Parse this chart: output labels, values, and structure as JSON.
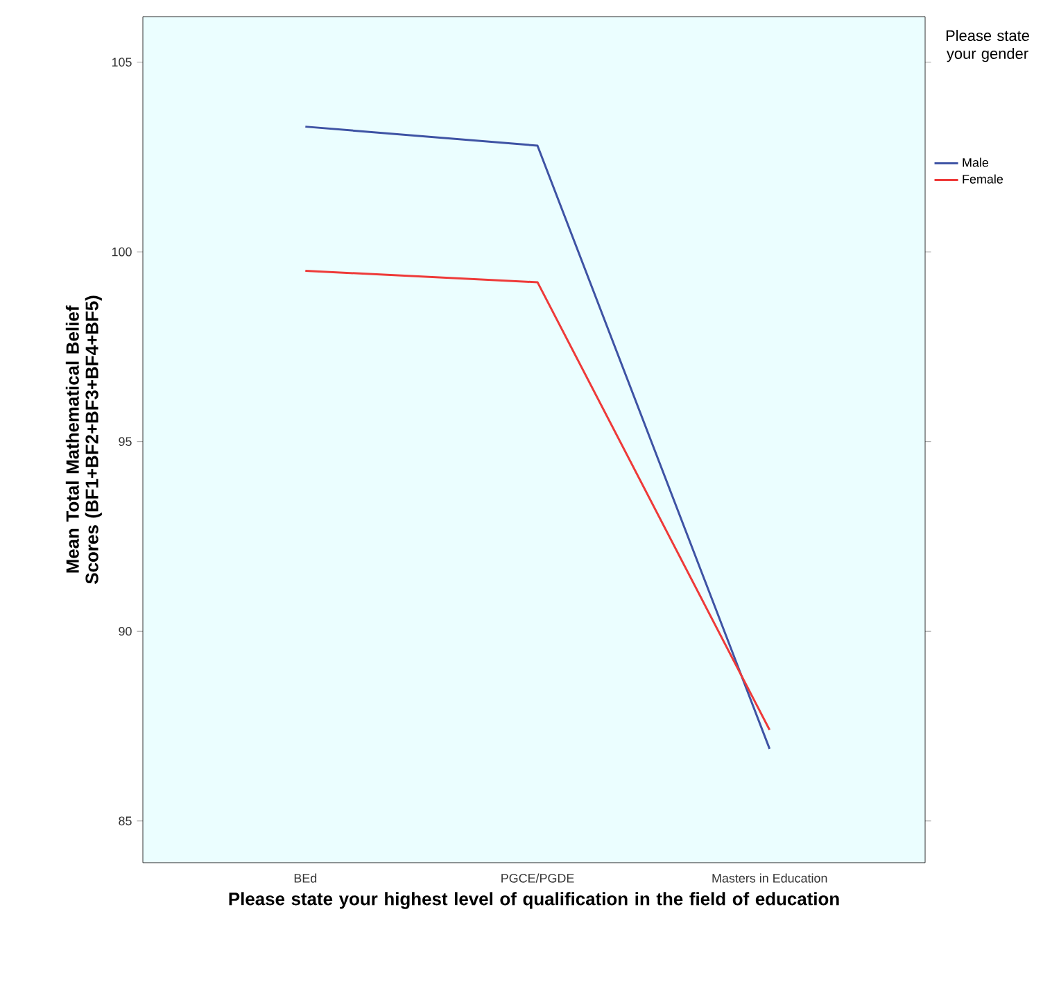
{
  "chart_data": {
    "type": "line",
    "xlabel": "Please state your highest level of qualification in the field of education",
    "ylabel": "Mean Total Mathematical Belief Scores (BF1+BF2+BF3+BF4+BF5)",
    "legend_title": "Please state your gender",
    "legend": "right",
    "categories": [
      "BEd",
      "PGCE/PGDE",
      "Masters in Education"
    ],
    "ylim": [
      83.9,
      106.2
    ],
    "yticks": [
      85,
      90,
      95,
      100,
      105
    ],
    "grid": false,
    "marker": "none",
    "line_style": "solid",
    "series": [
      {
        "name": "Male",
        "color": "#3e53a4",
        "values": [
          103.3,
          102.8,
          86.9
        ]
      },
      {
        "name": "Female",
        "color": "#ee3a39",
        "values": [
          99.5,
          99.2,
          87.4
        ]
      }
    ]
  }
}
